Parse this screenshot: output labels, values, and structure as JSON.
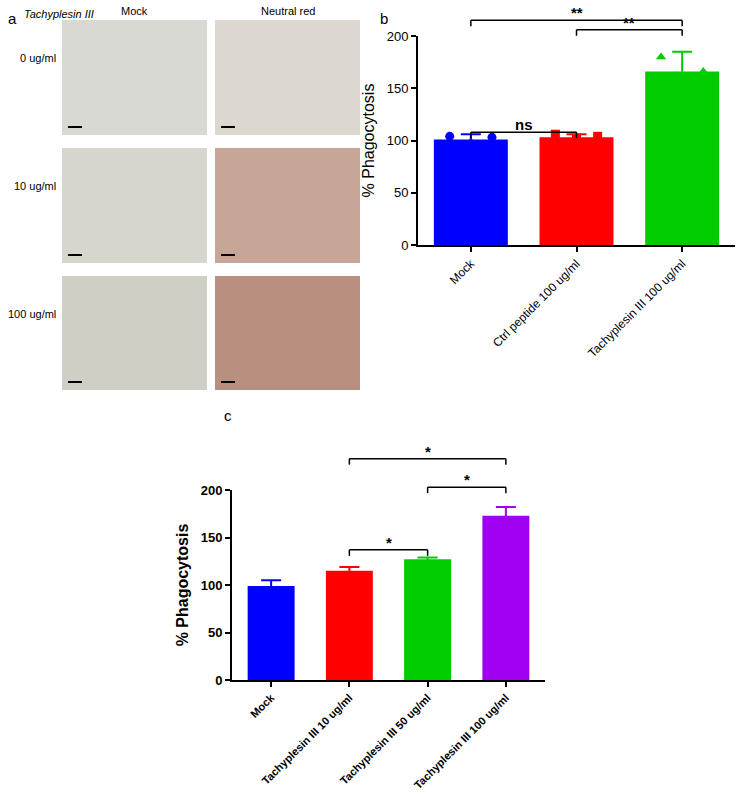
{
  "chart_data": [
    {
      "type": "image_grid",
      "panel": "a",
      "title": "Tachyplesin III",
      "columns": [
        "Mock",
        "Neutral red"
      ],
      "rows": [
        "0 ug/ml",
        "10 ug/ml",
        "100 ug/ml"
      ]
    },
    {
      "type": "bar",
      "panel": "b",
      "ylabel": "% Phagocytosis",
      "categories": [
        "Mock",
        "Ctrl peptide 100 ug/ml",
        "Tachyplesin III 100 ug/ml"
      ],
      "values": [
        101,
        103,
        166
      ],
      "errors": [
        5,
        3,
        19
      ],
      "colors": [
        "#0000ff",
        "#ff0000",
        "#00cc00"
      ],
      "points": [
        [
          104,
          97,
          103
        ],
        [
          106,
          102,
          104
        ],
        [
          180,
          162,
          160,
          166
        ]
      ],
      "point_markers": [
        "circle",
        "square",
        "triangle-up"
      ],
      "ylim": [
        0,
        200
      ],
      "yticks": [
        0,
        50,
        100,
        150,
        200
      ],
      "comparisons": [
        {
          "from": 0,
          "to": 2,
          "y": 215,
          "label": "**"
        },
        {
          "from": 1,
          "to": 2,
          "y": 206,
          "label": "**"
        },
        {
          "from": 0,
          "to": 1,
          "y": 108,
          "label": "ns"
        }
      ]
    },
    {
      "type": "bar",
      "panel": "c",
      "ylabel": "% Phagocytosis",
      "categories": [
        "Mock",
        "Tachyplesin III 10 ug/ml",
        "Tachyplesin III 50 ug/ml",
        "Tachyplesin III 100 ug/ml"
      ],
      "values": [
        99,
        115,
        127,
        173
      ],
      "errors": [
        6,
        4,
        2,
        9
      ],
      "colors": [
        "#0000ff",
        "#ff0000",
        "#00cc00",
        "#a000f0"
      ],
      "ylim": [
        0,
        200
      ],
      "yticks": [
        0,
        50,
        100,
        150,
        200
      ],
      "comparisons": [
        {
          "from": 1,
          "to": 2,
          "y": 137,
          "label": "*"
        },
        {
          "from": 2,
          "to": 3,
          "y": 203,
          "label": "*"
        },
        {
          "from": 1,
          "to": 3,
          "y": 233,
          "label": "*"
        }
      ]
    }
  ]
}
